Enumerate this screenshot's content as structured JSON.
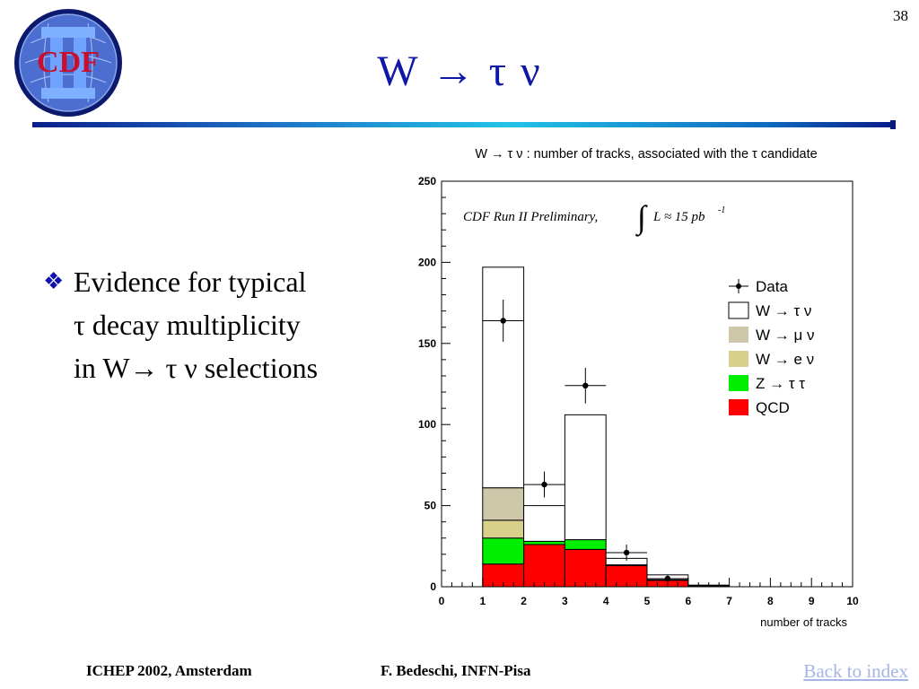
{
  "slide": {
    "number": "38",
    "title": "W → τ ν",
    "logo_text": "CDF",
    "bullet": {
      "line1": "Evidence for typical",
      "line2": "τ decay multiplicity",
      "line3": "in W→ τ ν selections"
    },
    "footer_left": "ICHEP 2002, Amsterdam",
    "footer_center": "F. Bedeschi, INFN-Pisa",
    "footer_link": "Back to index"
  },
  "chart_data": {
    "type": "bar",
    "title": "W → τ ν : number of tracks, associated with the  τ  candidate",
    "xlabel": "number of tracks",
    "ylabel": "",
    "annotation": "CDF Run II Preliminary,",
    "luminosity": "L ≈ 15 pb",
    "luminosity_exp": "-1",
    "xlim": [
      0,
      10
    ],
    "ylim": [
      0,
      250
    ],
    "x_ticks": [
      0,
      1,
      2,
      3,
      4,
      5,
      6,
      7,
      8,
      9,
      10
    ],
    "y_ticks": [
      0,
      50,
      100,
      150,
      200,
      250
    ],
    "bins": [
      [
        1,
        2
      ],
      [
        2,
        3
      ],
      [
        3,
        4
      ],
      [
        4,
        5
      ],
      [
        5,
        6
      ],
      [
        6,
        7
      ]
    ],
    "stacked": true,
    "legend_position": "right",
    "series": [
      {
        "name": "QCD",
        "color": "#ff0000",
        "values": [
          14,
          26,
          23,
          13,
          4,
          0.5
        ]
      },
      {
        "name": "Z → τ τ",
        "color": "#00ee00",
        "values": [
          16,
          2,
          6,
          0.5,
          0.3,
          0
        ]
      },
      {
        "name": "W → e ν",
        "color": "#d8cf8a",
        "values": [
          11,
          0,
          0,
          0,
          0,
          0
        ]
      },
      {
        "name": "W → μ ν",
        "color": "#cfc7aa",
        "values": [
          20,
          0,
          0,
          0,
          0,
          0
        ]
      },
      {
        "name": "W → τ ν",
        "color": "#ffffff",
        "values": [
          136,
          22,
          77,
          4,
          3,
          0.5
        ]
      }
    ],
    "data_points": {
      "name": "Data",
      "x": [
        1.5,
        2.5,
        3.5,
        4.5,
        5.5
      ],
      "y": [
        164,
        63,
        124,
        21,
        5
      ],
      "yerr": [
        13,
        8,
        11,
        5,
        2
      ]
    }
  }
}
